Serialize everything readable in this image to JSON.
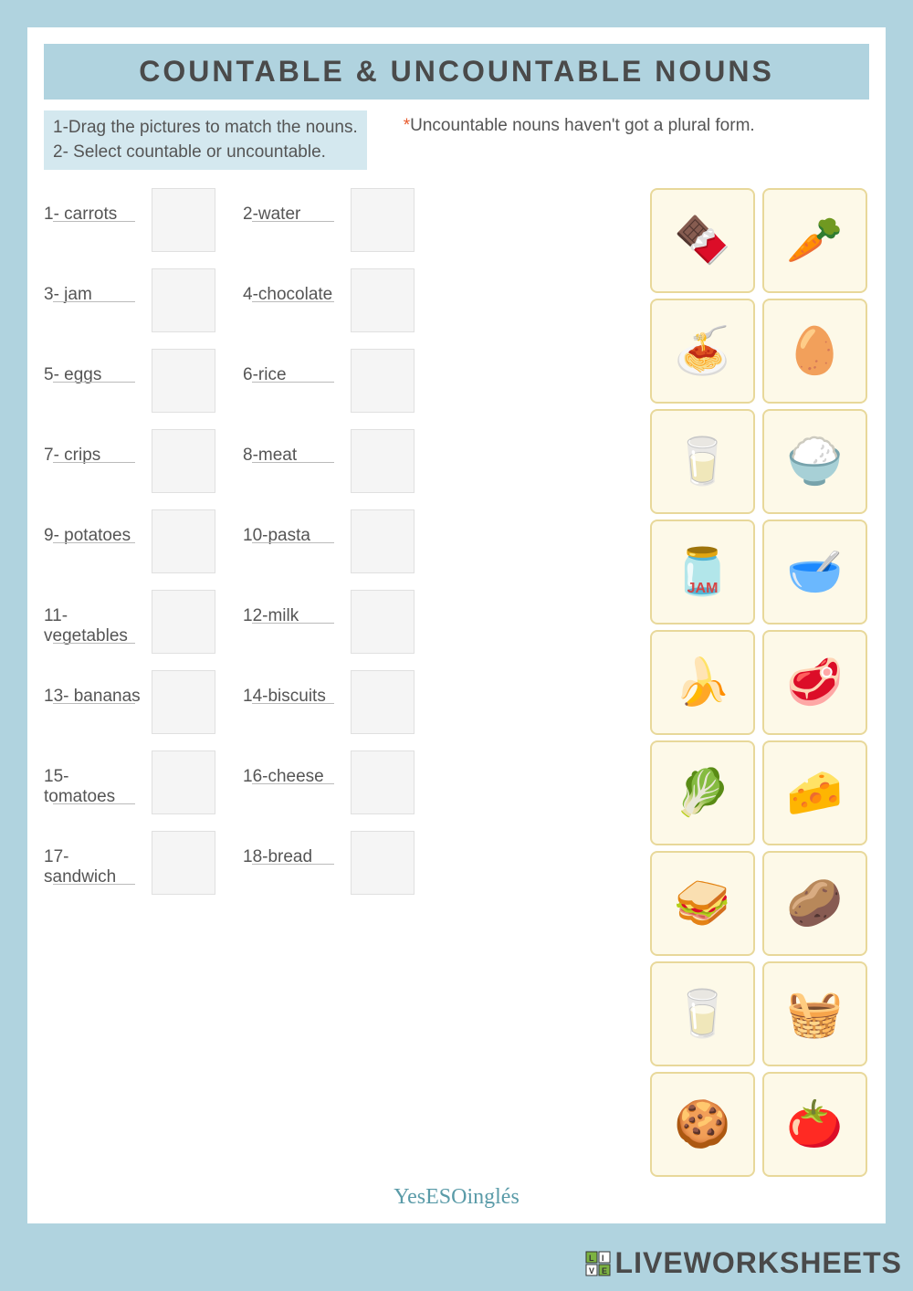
{
  "title": "COUNTABLE & UNCOUNTABLE NOUNS",
  "instruction1": "1-Drag the pictures to match the nouns.",
  "instruction2": "2- Select countable or uncountable.",
  "note": "Uncountable nouns haven't got a plural form.",
  "items": [
    {
      "num": "1",
      "label": "1- carrots"
    },
    {
      "num": "2",
      "label": "2-water"
    },
    {
      "num": "3",
      "label": "3- jam"
    },
    {
      "num": "4",
      "label": "4-chocolate"
    },
    {
      "num": "5",
      "label": "5- eggs"
    },
    {
      "num": "6",
      "label": "6-rice"
    },
    {
      "num": "7",
      "label": "7- crips"
    },
    {
      "num": "8",
      "label": "8-meat"
    },
    {
      "num": "9",
      "label": "9- potatoes"
    },
    {
      "num": "10",
      "label": "10-pasta"
    },
    {
      "num": "11",
      "label": "11- vegetables"
    },
    {
      "num": "12",
      "label": "12-milk"
    },
    {
      "num": "13",
      "label": "13- bananas"
    },
    {
      "num": "14",
      "label": "14-biscuits"
    },
    {
      "num": "15",
      "label": "15- tomatoes"
    },
    {
      "num": "16",
      "label": "16-cheese"
    },
    {
      "num": "17",
      "label": "17- sandwich"
    },
    {
      "num": "18",
      "label": "18-bread"
    }
  ],
  "images": [
    {
      "name": "chocolate",
      "emoji": "🍫"
    },
    {
      "name": "carrots",
      "emoji": "🥕"
    },
    {
      "name": "pasta",
      "emoji": "🍝"
    },
    {
      "name": "eggs",
      "emoji": "🥚"
    },
    {
      "name": "milk-jug",
      "emoji": "🥛"
    },
    {
      "name": "rice",
      "emoji": "🍚"
    },
    {
      "name": "jam",
      "emoji": "🫙",
      "label": "JAM"
    },
    {
      "name": "crisps",
      "emoji": "🥣"
    },
    {
      "name": "bananas",
      "emoji": "🍌"
    },
    {
      "name": "meat",
      "emoji": "🥩"
    },
    {
      "name": "vegetables",
      "emoji": "🥬"
    },
    {
      "name": "cheese",
      "emoji": "🧀"
    },
    {
      "name": "sandwich",
      "emoji": "🥪"
    },
    {
      "name": "potatoes",
      "emoji": "🥔"
    },
    {
      "name": "milk-glass",
      "emoji": "🥛"
    },
    {
      "name": "bread",
      "emoji": "🧺"
    },
    {
      "name": "biscuits",
      "emoji": "🍪"
    },
    {
      "name": "tomatoes",
      "emoji": "🍅"
    }
  ],
  "credit": "YesESOinglés",
  "watermark": "LIVEWORKSHEETS",
  "colors": {
    "page_bg": "#b0d3df",
    "sheet_bg": "#ffffff",
    "instr_bg": "#d4e8ef",
    "img_bg": "#fdf9e8",
    "img_border": "#e8d89a",
    "text": "#555555",
    "asterisk": "#e85a2c",
    "credit": "#5a9ba8"
  }
}
